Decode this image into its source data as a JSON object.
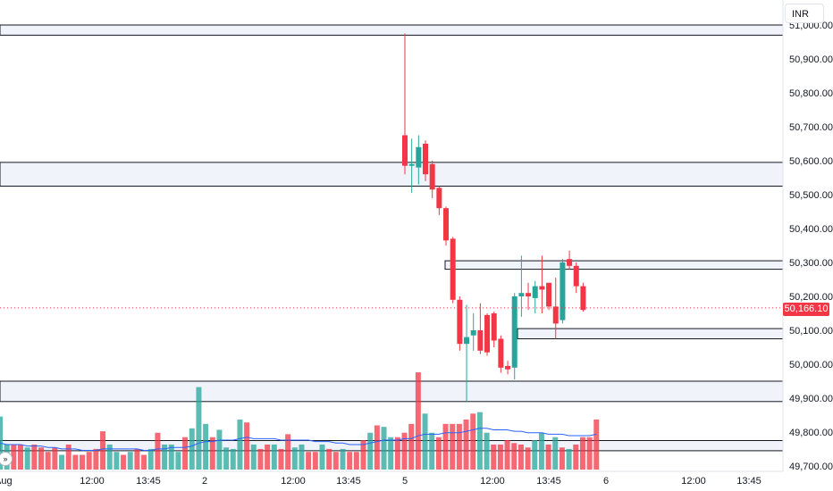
{
  "currency": "INR",
  "last_price_label": "50,166.10",
  "colors": {
    "up": "#26a69a",
    "down": "#f23645",
    "zone_fill": "#f0f3fa",
    "zone_border": "#131722",
    "ma_line": "#2962ff",
    "last_price": "#f23645"
  },
  "price_axis": {
    "labels": [
      "51,000.00",
      "50,900.00",
      "50,800.00",
      "50,700.00",
      "50,600.00",
      "50,500.00",
      "50,400.00",
      "50,300.00",
      "50,200.00",
      "50,100.00",
      "50,000.00",
      "49,900.00",
      "49,800.00",
      "49,700.00"
    ]
  },
  "time_axis": {
    "labels": [
      "Aug",
      "12:00",
      "13:45",
      "2",
      "12:00",
      "13:45",
      "5",
      "12:00",
      "13:45",
      "6",
      "12:00",
      "13:45"
    ]
  },
  "chart_data": {
    "type": "candlestick",
    "symbol_currency": "INR",
    "ylim": [
      49690,
      51020
    ],
    "last_price": 50166.1,
    "zones": [
      {
        "low": 50970,
        "high": 51000
      },
      {
        "low": 50525,
        "high": 50595
      },
      {
        "low": 50280,
        "high": 50305
      },
      {
        "low": 50075,
        "high": 50105
      },
      {
        "low": 49890,
        "high": 49950
      },
      {
        "low": 49745,
        "high": 49775
      }
    ],
    "candles": [
      {
        "o": 50675,
        "h": 50975,
        "c": 50585,
        "l": 50560
      },
      {
        "o": 50585,
        "h": 50665,
        "c": 50590,
        "l": 50505
      },
      {
        "o": 50580,
        "h": 50675,
        "c": 50640,
        "l": 50530
      },
      {
        "o": 50650,
        "h": 50660,
        "c": 50560,
        "l": 50540
      },
      {
        "o": 50590,
        "h": 50600,
        "c": 50515,
        "l": 50490
      },
      {
        "o": 50520,
        "h": 50525,
        "c": 50460,
        "l": 50440
      },
      {
        "o": 50460,
        "h": 50465,
        "c": 50365,
        "l": 50350
      },
      {
        "o": 50370,
        "h": 50375,
        "c": 50190,
        "l": 50180
      },
      {
        "o": 50190,
        "h": 50200,
        "c": 50060,
        "l": 50040
      },
      {
        "o": 50060,
        "h": 50175,
        "c": 50080,
        "l": 49890
      },
      {
        "o": 50085,
        "h": 50150,
        "c": 50100,
        "l": 50040
      },
      {
        "o": 50100,
        "h": 50180,
        "c": 50040,
        "l": 50030
      },
      {
        "o": 50145,
        "h": 50150,
        "c": 50035,
        "l": 50025
      },
      {
        "o": 50150,
        "h": 50155,
        "c": 50070,
        "l": 50050
      },
      {
        "o": 50075,
        "h": 50085,
        "c": 49990,
        "l": 49975
      },
      {
        "o": 49995,
        "h": 50010,
        "c": 49985,
        "l": 49970
      },
      {
        "o": 49990,
        "h": 50210,
        "c": 50200,
        "l": 49955
      },
      {
        "o": 50200,
        "h": 50320,
        "c": 50210,
        "l": 50140
      },
      {
        "o": 50210,
        "h": 50240,
        "c": 50200,
        "l": 50160
      },
      {
        "o": 50195,
        "h": 50245,
        "c": 50230,
        "l": 50150
      },
      {
        "o": 50230,
        "h": 50320,
        "c": 50220,
        "l": 50150
      },
      {
        "o": 50240,
        "h": 50240,
        "c": 50170,
        "l": 50160
      },
      {
        "o": 50170,
        "h": 50255,
        "c": 50120,
        "l": 50075
      },
      {
        "o": 50130,
        "h": 50310,
        "c": 50300,
        "l": 50120
      },
      {
        "o": 50310,
        "h": 50335,
        "c": 50290,
        "l": 50280
      },
      {
        "o": 50290,
        "h": 50300,
        "c": 50230,
        "l": 50210
      },
      {
        "o": 50230,
        "h": 50240,
        "c": 50160,
        "l": 50155
      }
    ],
    "volume": {
      "pattern": "recent session volume bars (relative heights)",
      "bars": [
        {
          "v": 0.36,
          "d": "up"
        },
        {
          "v": 0.17,
          "d": "up"
        },
        {
          "v": 0.17,
          "d": "down"
        },
        {
          "v": 0.17,
          "d": "down"
        },
        {
          "v": 0.15,
          "d": "up"
        },
        {
          "v": 0.17,
          "d": "down"
        },
        {
          "v": 0.15,
          "d": "down"
        },
        {
          "v": 0.12,
          "d": "down"
        },
        {
          "v": 0.15,
          "d": "down"
        },
        {
          "v": 0.1,
          "d": "up"
        },
        {
          "v": 0.17,
          "d": "down"
        },
        {
          "v": 0.1,
          "d": "down"
        },
        {
          "v": 0.1,
          "d": "down"
        },
        {
          "v": 0.12,
          "d": "down"
        },
        {
          "v": 0.14,
          "d": "down"
        },
        {
          "v": 0.26,
          "d": "down"
        },
        {
          "v": 0.17,
          "d": "up"
        },
        {
          "v": 0.12,
          "d": "up"
        },
        {
          "v": 0.1,
          "d": "down"
        },
        {
          "v": 0.12,
          "d": "up"
        },
        {
          "v": 0.14,
          "d": "down"
        },
        {
          "v": 0.1,
          "d": "down"
        },
        {
          "v": 0.14,
          "d": "up"
        },
        {
          "v": 0.25,
          "d": "down"
        },
        {
          "v": 0.17,
          "d": "up"
        },
        {
          "v": 0.17,
          "d": "up"
        },
        {
          "v": 0.12,
          "d": "up"
        },
        {
          "v": 0.22,
          "d": "down"
        },
        {
          "v": 0.28,
          "d": "up"
        },
        {
          "v": 0.56,
          "d": "up"
        },
        {
          "v": 0.31,
          "d": "up"
        },
        {
          "v": 0.22,
          "d": "down"
        },
        {
          "v": 0.27,
          "d": "up"
        },
        {
          "v": 0.15,
          "d": "up"
        },
        {
          "v": 0.14,
          "d": "up"
        },
        {
          "v": 0.34,
          "d": "up"
        },
        {
          "v": 0.32,
          "d": "down"
        },
        {
          "v": 0.17,
          "d": "up"
        },
        {
          "v": 0.14,
          "d": "down"
        },
        {
          "v": 0.17,
          "d": "down"
        },
        {
          "v": 0.17,
          "d": "up"
        },
        {
          "v": 0.14,
          "d": "down"
        },
        {
          "v": 0.24,
          "d": "down"
        },
        {
          "v": 0.15,
          "d": "up"
        },
        {
          "v": 0.17,
          "d": "up"
        },
        {
          "v": 0.12,
          "d": "down"
        },
        {
          "v": 0.12,
          "d": "down"
        },
        {
          "v": 0.17,
          "d": "up"
        },
        {
          "v": 0.14,
          "d": "down"
        },
        {
          "v": 0.12,
          "d": "down"
        },
        {
          "v": 0.14,
          "d": "up"
        },
        {
          "v": 0.12,
          "d": "down"
        },
        {
          "v": 0.12,
          "d": "down"
        },
        {
          "v": 0.2,
          "d": "down"
        },
        {
          "v": 0.25,
          "d": "up"
        },
        {
          "v": 0.3,
          "d": "down"
        },
        {
          "v": 0.29,
          "d": "up"
        },
        {
          "v": 0.22,
          "d": "up"
        },
        {
          "v": 0.22,
          "d": "down"
        },
        {
          "v": 0.25,
          "d": "down"
        },
        {
          "v": 0.31,
          "d": "down"
        },
        {
          "v": 0.66,
          "d": "down"
        },
        {
          "v": 0.38,
          "d": "up"
        },
        {
          "v": 0.25,
          "d": "up"
        },
        {
          "v": 0.22,
          "d": "down"
        },
        {
          "v": 0.31,
          "d": "down"
        },
        {
          "v": 0.31,
          "d": "down"
        },
        {
          "v": 0.31,
          "d": "down"
        },
        {
          "v": 0.34,
          "d": "down"
        },
        {
          "v": 0.38,
          "d": "down"
        },
        {
          "v": 0.39,
          "d": "up"
        },
        {
          "v": 0.25,
          "d": "up"
        },
        {
          "v": 0.17,
          "d": "down"
        },
        {
          "v": 0.17,
          "d": "down"
        },
        {
          "v": 0.2,
          "d": "down"
        },
        {
          "v": 0.18,
          "d": "down"
        },
        {
          "v": 0.17,
          "d": "down"
        },
        {
          "v": 0.15,
          "d": "down"
        },
        {
          "v": 0.2,
          "d": "up"
        },
        {
          "v": 0.25,
          "d": "up"
        },
        {
          "v": 0.17,
          "d": "down"
        },
        {
          "v": 0.22,
          "d": "up"
        },
        {
          "v": 0.15,
          "d": "down"
        },
        {
          "v": 0.14,
          "d": "up"
        },
        {
          "v": 0.17,
          "d": "down"
        },
        {
          "v": 0.22,
          "d": "down"
        },
        {
          "v": 0.22,
          "d": "down"
        },
        {
          "v": 0.34,
          "d": "down"
        }
      ],
      "ma": [
        0.18,
        0.17,
        0.17,
        0.17,
        0.16,
        0.16,
        0.16,
        0.15,
        0.15,
        0.14,
        0.14,
        0.14,
        0.13,
        0.13,
        0.13,
        0.14,
        0.14,
        0.14,
        0.14,
        0.14,
        0.14,
        0.13,
        0.13,
        0.14,
        0.14,
        0.15,
        0.15,
        0.15,
        0.16,
        0.18,
        0.19,
        0.19,
        0.2,
        0.2,
        0.2,
        0.21,
        0.22,
        0.21,
        0.21,
        0.21,
        0.21,
        0.2,
        0.2,
        0.2,
        0.2,
        0.2,
        0.19,
        0.19,
        0.19,
        0.18,
        0.18,
        0.17,
        0.17,
        0.17,
        0.18,
        0.19,
        0.2,
        0.2,
        0.2,
        0.21,
        0.21,
        0.23,
        0.24,
        0.24,
        0.24,
        0.25,
        0.25,
        0.25,
        0.26,
        0.27,
        0.28,
        0.28,
        0.27,
        0.27,
        0.27,
        0.26,
        0.26,
        0.25,
        0.25,
        0.25,
        0.24,
        0.24,
        0.24,
        0.23,
        0.23,
        0.23,
        0.23,
        0.24
      ]
    }
  }
}
